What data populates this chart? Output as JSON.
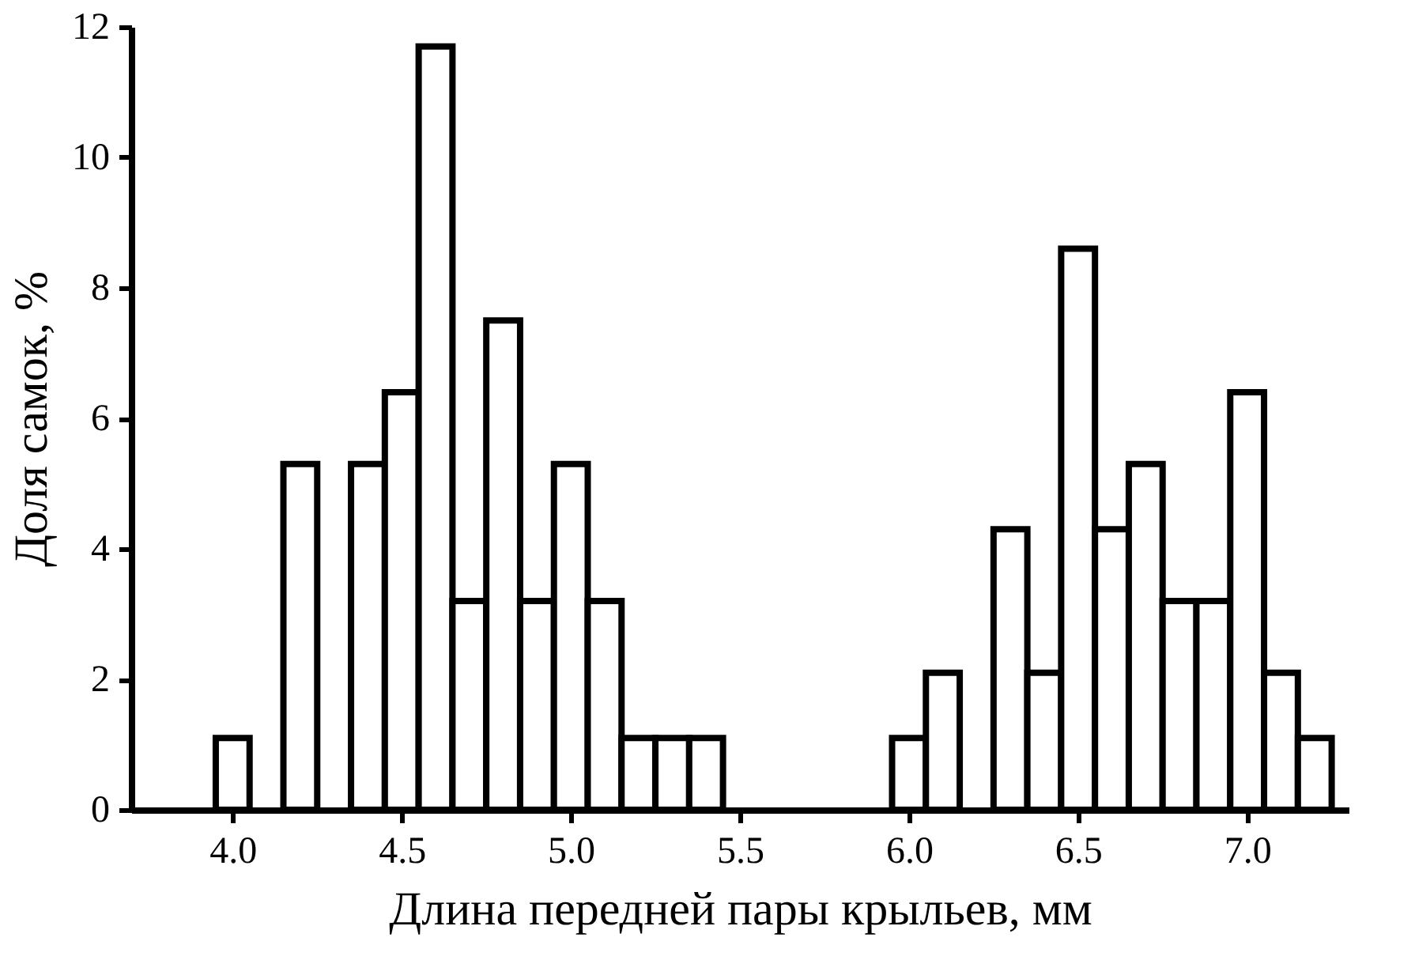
{
  "chart_data": {
    "type": "histogram",
    "xlabel": "Длина передней пары крыльев, мм",
    "ylabel": "Доля самок, %",
    "bins": [
      3.95,
      4.05,
      4.15,
      4.25,
      4.35,
      4.45,
      4.55,
      4.65,
      4.75,
      4.85,
      4.95,
      5.05,
      5.15,
      5.25,
      5.35,
      5.45,
      5.55,
      5.65,
      5.75,
      5.85,
      5.95,
      6.05,
      6.15,
      6.25,
      6.35,
      6.45,
      6.55,
      6.65,
      6.75,
      6.85,
      6.95,
      7.05,
      7.15,
      7.25
    ],
    "values": [
      1.1,
      0,
      5.3,
      0,
      5.3,
      6.4,
      11.7,
      3.2,
      7.5,
      3.2,
      5.3,
      3.2,
      1.1,
      1.1,
      1.1,
      0,
      0,
      0,
      0,
      0,
      1.1,
      2.1,
      0,
      4.3,
      2.1,
      8.6,
      4.3,
      5.3,
      3.2,
      3.2,
      6.4,
      2.1,
      1.1
    ],
    "color": "#ffffff",
    "xlim": [
      3.7,
      7.3
    ],
    "xticks": [
      {
        "value": 4.0,
        "label": "4.0"
      },
      {
        "value": 4.5,
        "label": "4.5"
      },
      {
        "value": 5.0,
        "label": "5.0"
      },
      {
        "value": 5.5,
        "label": "5.5"
      },
      {
        "value": 6.0,
        "label": "6.0"
      },
      {
        "value": 6.5,
        "label": "6.5"
      },
      {
        "value": 7.0,
        "label": "7.0"
      }
    ],
    "ylim": [
      0,
      12
    ],
    "yticks": [
      0,
      2,
      4,
      6,
      8,
      10,
      12
    ],
    "grid": false
  }
}
